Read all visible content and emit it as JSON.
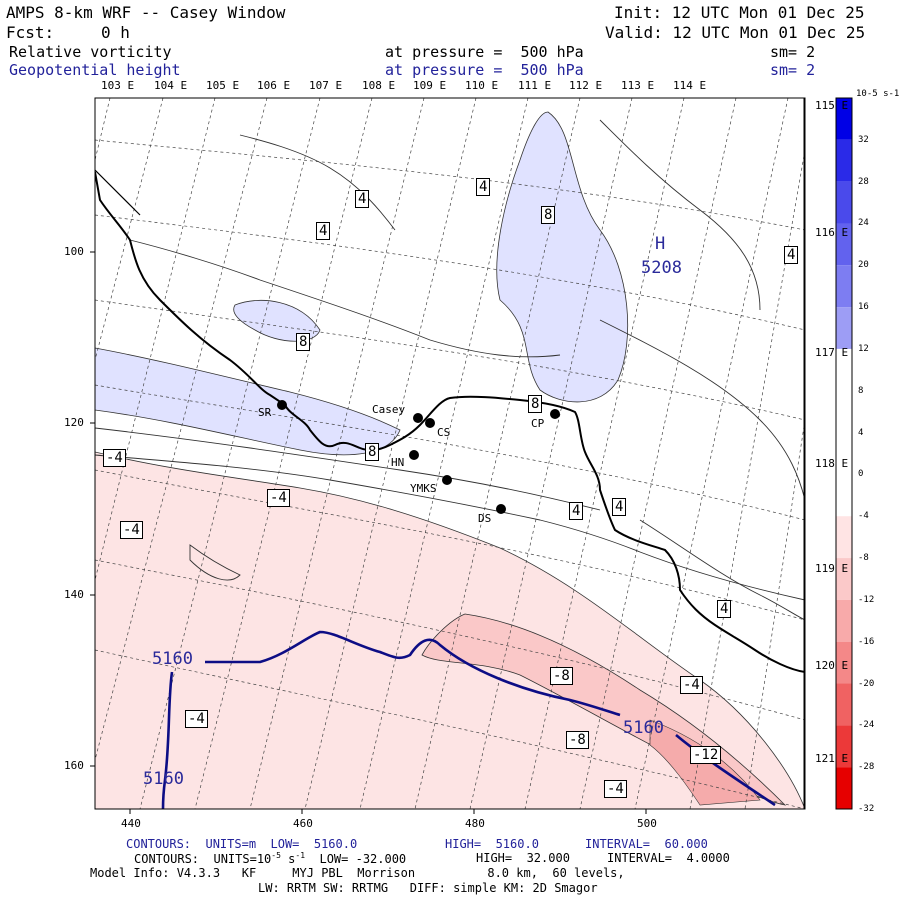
{
  "header": {
    "title": "AMPS 8-km WRF -- Casey Window",
    "init": "Init: 12 UTC Mon 01 Dec 25",
    "fcst_label": "Fcst:",
    "fcst_value": "0 h",
    "valid": "Valid: 12 UTC Mon 01 Dec 25",
    "field1_name": "Relative vorticity",
    "field1_level": "at pressure =  500 hPa",
    "field1_sm": "sm= 2",
    "field2_name": "Geopotential height",
    "field2_level": "at pressure =  500 hPa",
    "field2_sm": "sm= 2"
  },
  "map": {
    "lon_labels_top": [
      "103 E",
      "104 E",
      "105 E",
      "106 E",
      "107 E",
      "108 E",
      "109 E",
      "110 E",
      "111 E",
      "112 E",
      "113 E",
      "114 E"
    ],
    "lon_labels_right": [
      "115 E",
      "116 E",
      "117 E",
      "118 E",
      "119 E",
      "120 E",
      "121 E"
    ],
    "x_ticks": [
      "440",
      "460",
      "480",
      "500"
    ],
    "y_ticks": [
      "100",
      "120",
      "140",
      "160"
    ],
    "stations": [
      {
        "name": "SR"
      },
      {
        "name": "Casey"
      },
      {
        "name": "CS"
      },
      {
        "name": "HN"
      },
      {
        "name": "YMKS"
      },
      {
        "name": "DS"
      },
      {
        "name": "CP"
      }
    ],
    "vort_labels": [
      "4",
      "4",
      "4",
      "8",
      "4",
      "8",
      "8",
      "8",
      "-4",
      "-4",
      "-4",
      "4",
      "4",
      "4",
      "-4",
      "-8",
      "-4",
      "-8",
      "-12",
      "-4"
    ],
    "height_labels": [
      "5160",
      "5160",
      "5160"
    ],
    "high_marker": "H",
    "high_value": "5208",
    "colors": {
      "positive": "#e0e2ff",
      "neg1": "#fde4e4",
      "neg2": "#fac8c8",
      "neg3": "#f5abab",
      "height": "#0d0d85"
    }
  },
  "colorbar": {
    "units": "10-5 s-1",
    "labels": [
      "32",
      "28",
      "24",
      "20",
      "16",
      "12",
      "8",
      "4",
      "0",
      "-4",
      "-8",
      "-12",
      "-16",
      "-20",
      "-24",
      "-28",
      "-32"
    ],
    "colors": [
      "#0000e6",
      "#2a2ae8",
      "#4a4aeb",
      "#6262ee",
      "#7d7df2",
      "#9d9df5",
      "#ffffff",
      "#ffffff",
      "#ffffff",
      "#ffffff",
      "#ffe4e4",
      "#fbc9c9",
      "#f8aaaa",
      "#f48888",
      "#f06262",
      "#ec3939",
      "#e60000"
    ]
  },
  "footer": {
    "line1_a": "CONTOURS:  UNITS=m  LOW=  5160.0",
    "line1_b": "HIGH=  5160.0",
    "line1_c": "INTERVAL=  60.000",
    "line2_a": "CONTOURS:  UNITS=10",
    "line2_b": "-5",
    "line2_c": " s",
    "line2_d": "-1",
    "line2_e": "  LOW= -32.000",
    "line2_f": "HIGH=  32.000",
    "line2_g": "INTERVAL=  4.0000",
    "line3": "Model Info: V4.3.3   KF     MYJ PBL  Morrison          8.0 km,  60 levels,",
    "line4": "LW: RRTM SW: RRTMG   DIFF: simple KM: 2D Smagor"
  }
}
